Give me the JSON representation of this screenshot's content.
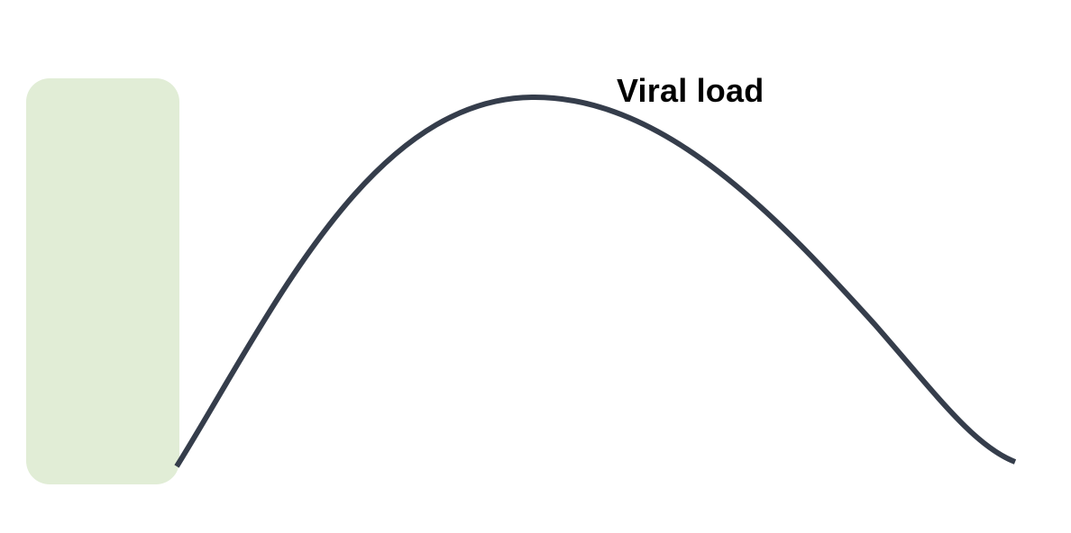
{
  "diagram": {
    "curve_label": "Viral load",
    "colors": {
      "panel_fill": "#e1edd6",
      "curve_stroke": "#353d4b",
      "label_text": "#000000"
    },
    "icons": []
  }
}
